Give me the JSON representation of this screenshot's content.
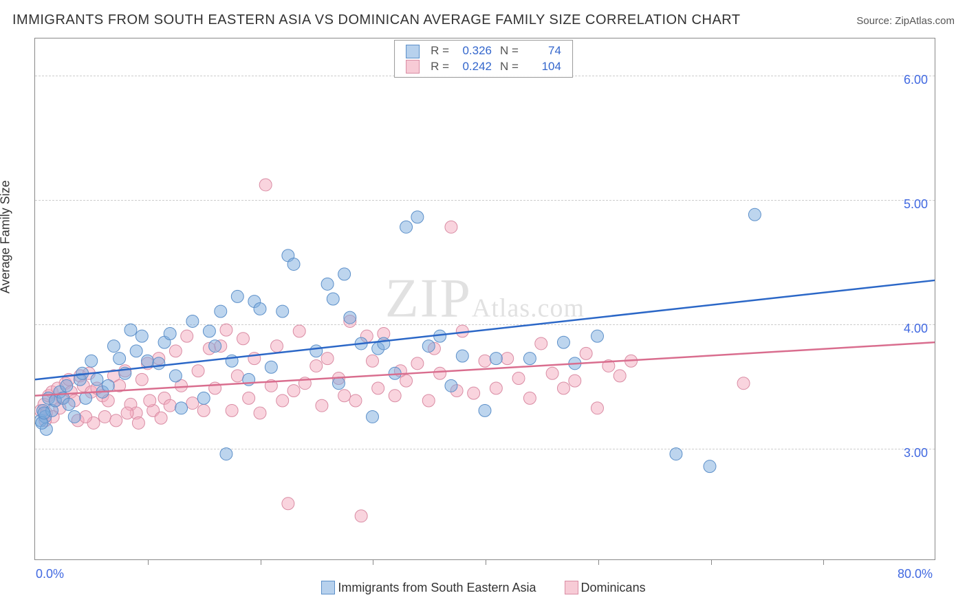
{
  "title": "IMMIGRANTS FROM SOUTH EASTERN ASIA VS DOMINICAN AVERAGE FAMILY SIZE CORRELATION CHART",
  "source_label": "Source:",
  "source_name": "ZipAtlas.com",
  "watermark_main": "ZIP",
  "watermark_sub": "Atlas.com",
  "yaxis_title": "Average Family Size",
  "chart": {
    "type": "scatter",
    "xlim": [
      0,
      80
    ],
    "ylim": [
      2.1,
      6.3
    ],
    "xtick_step": 10,
    "yticks": [
      3.0,
      4.0,
      5.0,
      6.0
    ],
    "xaxis_min_label": "0.0%",
    "xaxis_max_label": "80.0%",
    "grid_color": "#cccccc",
    "background_color": "#ffffff",
    "border_color": "#888888",
    "marker_radius": 9,
    "label_fontsize": 18,
    "title_fontsize": 20,
    "tick_color": "#4169e1"
  },
  "series": [
    {
      "key": "blue",
      "label": "Immigrants from South Eastern Asia",
      "fill": "rgba(123,171,222,0.50)",
      "stroke": "#5b8fc9",
      "R": "0.326",
      "N": "74",
      "trend": {
        "x1": 0,
        "y1": 3.55,
        "x2": 80,
        "y2": 4.35,
        "color": "#2b67c7"
      },
      "points": [
        [
          0.5,
          3.22
        ],
        [
          0.7,
          3.3
        ],
        [
          0.9,
          3.25
        ],
        [
          1.2,
          3.4
        ],
        [
          1.0,
          3.15
        ],
        [
          1.5,
          3.3
        ],
        [
          1.8,
          3.38
        ],
        [
          2.2,
          3.45
        ],
        [
          2.5,
          3.4
        ],
        [
          2.8,
          3.5
        ],
        [
          3.0,
          3.35
        ],
        [
          3.5,
          3.25
        ],
        [
          4.0,
          3.55
        ],
        [
          4.2,
          3.6
        ],
        [
          4.5,
          3.4
        ],
        [
          5.0,
          3.7
        ],
        [
          5.5,
          3.55
        ],
        [
          6.0,
          3.45
        ],
        [
          6.5,
          3.5
        ],
        [
          7.0,
          3.82
        ],
        [
          7.5,
          3.72
        ],
        [
          8.0,
          3.6
        ],
        [
          8.5,
          3.95
        ],
        [
          9.0,
          3.78
        ],
        [
          9.5,
          3.9
        ],
        [
          10.0,
          3.7
        ],
        [
          11.0,
          3.68
        ],
        [
          11.5,
          3.85
        ],
        [
          12.0,
          3.92
        ],
        [
          12.5,
          3.58
        ],
        [
          13.0,
          3.32
        ],
        [
          14.0,
          4.02
        ],
        [
          15.0,
          3.4
        ],
        [
          15.5,
          3.94
        ],
        [
          16.0,
          3.82
        ],
        [
          16.5,
          4.1
        ],
        [
          17.0,
          2.95
        ],
        [
          17.5,
          3.7
        ],
        [
          18.0,
          4.22
        ],
        [
          19.0,
          3.55
        ],
        [
          19.5,
          4.18
        ],
        [
          20.0,
          4.12
        ],
        [
          21.0,
          3.65
        ],
        [
          22.0,
          4.1
        ],
        [
          22.5,
          4.55
        ],
        [
          23.0,
          4.48
        ],
        [
          25.0,
          3.78
        ],
        [
          26.0,
          4.32
        ],
        [
          26.5,
          4.2
        ],
        [
          27.0,
          3.52
        ],
        [
          27.5,
          4.4
        ],
        [
          28.0,
          4.05
        ],
        [
          29.0,
          3.84
        ],
        [
          30.0,
          3.25
        ],
        [
          30.5,
          3.8
        ],
        [
          31.0,
          3.84
        ],
        [
          32.0,
          3.6
        ],
        [
          33.0,
          4.78
        ],
        [
          34.0,
          4.86
        ],
        [
          35.0,
          3.82
        ],
        [
          36.0,
          3.9
        ],
        [
          37.0,
          3.5
        ],
        [
          38.0,
          3.74
        ],
        [
          40.0,
          3.3
        ],
        [
          41.0,
          3.72
        ],
        [
          44.0,
          3.72
        ],
        [
          47.0,
          3.85
        ],
        [
          48.0,
          3.68
        ],
        [
          50.0,
          3.9
        ],
        [
          57.0,
          2.95
        ],
        [
          60.0,
          2.85
        ],
        [
          64.0,
          4.88
        ],
        [
          0.6,
          3.2
        ],
        [
          0.8,
          3.28
        ]
      ]
    },
    {
      "key": "pink",
      "label": "Dominicans",
      "fill": "rgba(244,170,190,0.50)",
      "stroke": "#d98ba3",
      "R": "0.242",
      "N": "104",
      "trend": {
        "x1": 0,
        "y1": 3.42,
        "x2": 80,
        "y2": 3.85,
        "color": "#d96d8e"
      },
      "points": [
        [
          0.5,
          3.3
        ],
        [
          0.8,
          3.35
        ],
        [
          1.0,
          3.28
        ],
        [
          1.2,
          3.42
        ],
        [
          1.5,
          3.45
        ],
        [
          1.8,
          3.38
        ],
        [
          2.0,
          3.48
        ],
        [
          2.4,
          3.4
        ],
        [
          2.7,
          3.52
        ],
        [
          3.0,
          3.55
        ],
        [
          3.2,
          3.45
        ],
        [
          3.5,
          3.38
        ],
        [
          4.0,
          3.58
        ],
        [
          4.3,
          3.5
        ],
        [
          4.8,
          3.6
        ],
        [
          5.0,
          3.45
        ],
        [
          5.5,
          3.48
        ],
        [
          6.0,
          3.42
        ],
        [
          6.5,
          3.38
        ],
        [
          7.0,
          3.58
        ],
        [
          7.5,
          3.5
        ],
        [
          8.0,
          3.62
        ],
        [
          8.5,
          3.35
        ],
        [
          9.0,
          3.28
        ],
        [
          9.5,
          3.55
        ],
        [
          10.0,
          3.68
        ],
        [
          10.5,
          3.3
        ],
        [
          11.0,
          3.72
        ],
        [
          11.5,
          3.4
        ],
        [
          12.0,
          3.34
        ],
        [
          12.5,
          3.78
        ],
        [
          13.0,
          3.5
        ],
        [
          13.5,
          3.9
        ],
        [
          14.0,
          3.36
        ],
        [
          14.5,
          3.62
        ],
        [
          15.0,
          3.3
        ],
        [
          15.5,
          3.8
        ],
        [
          16.0,
          3.48
        ],
        [
          16.5,
          3.82
        ],
        [
          17.0,
          3.95
        ],
        [
          17.5,
          3.3
        ],
        [
          18.0,
          3.58
        ],
        [
          18.5,
          3.88
        ],
        [
          19.0,
          3.4
        ],
        [
          19.5,
          3.72
        ],
        [
          20.0,
          3.28
        ],
        [
          20.5,
          5.12
        ],
        [
          21.0,
          3.5
        ],
        [
          21.5,
          3.82
        ],
        [
          22.0,
          3.38
        ],
        [
          22.5,
          2.55
        ],
        [
          23.0,
          3.46
        ],
        [
          23.5,
          3.94
        ],
        [
          24.0,
          3.52
        ],
        [
          25.0,
          3.66
        ],
        [
          25.5,
          3.34
        ],
        [
          26.0,
          3.72
        ],
        [
          27.0,
          3.56
        ],
        [
          27.5,
          3.42
        ],
        [
          28.0,
          4.02
        ],
        [
          28.5,
          3.38
        ],
        [
          29.0,
          2.45
        ],
        [
          29.5,
          3.9
        ],
        [
          30.0,
          3.7
        ],
        [
          30.5,
          3.48
        ],
        [
          31.0,
          3.92
        ],
        [
          32.0,
          3.42
        ],
        [
          32.5,
          3.62
        ],
        [
          33.0,
          3.54
        ],
        [
          34.0,
          3.68
        ],
        [
          35.0,
          3.38
        ],
        [
          35.5,
          3.8
        ],
        [
          36.0,
          3.6
        ],
        [
          37.0,
          4.78
        ],
        [
          37.5,
          3.46
        ],
        [
          38.0,
          3.94
        ],
        [
          39.0,
          3.44
        ],
        [
          40.0,
          3.7
        ],
        [
          41.0,
          3.48
        ],
        [
          42.0,
          3.72
        ],
        [
          43.0,
          3.56
        ],
        [
          44.0,
          3.4
        ],
        [
          45.0,
          3.84
        ],
        [
          46.0,
          3.6
        ],
        [
          47.0,
          3.48
        ],
        [
          48.0,
          3.54
        ],
        [
          49.0,
          3.76
        ],
        [
          50.0,
          3.32
        ],
        [
          51.0,
          3.66
        ],
        [
          52.0,
          3.58
        ],
        [
          53.0,
          3.7
        ],
        [
          5.2,
          3.2
        ],
        [
          6.2,
          3.25
        ],
        [
          7.2,
          3.22
        ],
        [
          8.2,
          3.28
        ],
        [
          9.2,
          3.2
        ],
        [
          10.2,
          3.38
        ],
        [
          11.2,
          3.24
        ],
        [
          63.0,
          3.52
        ],
        [
          3.8,
          3.22
        ],
        [
          4.5,
          3.25
        ],
        [
          2.2,
          3.32
        ],
        [
          1.6,
          3.25
        ],
        [
          0.9,
          3.22
        ]
      ]
    }
  ]
}
